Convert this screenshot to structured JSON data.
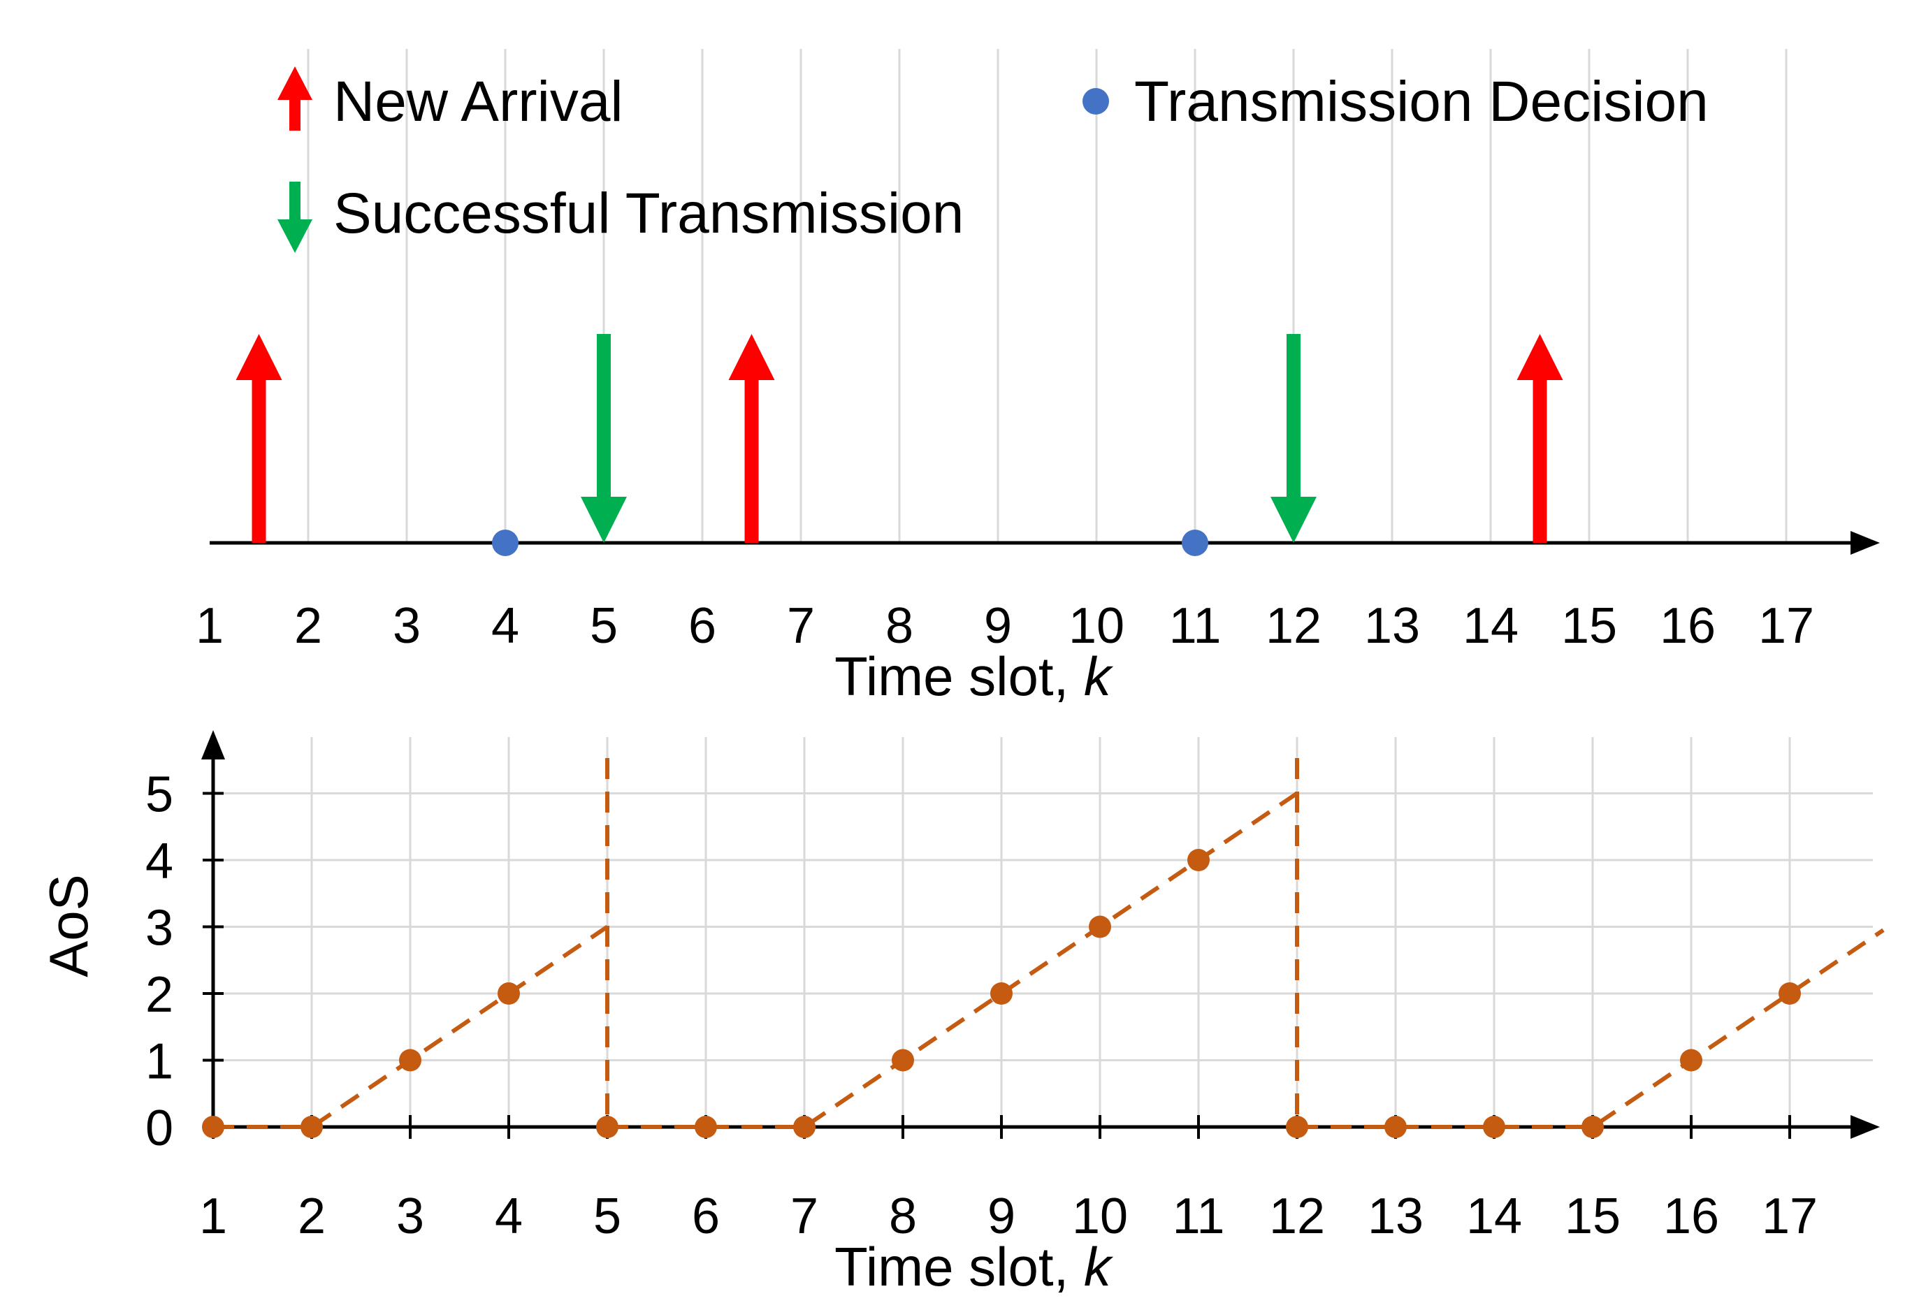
{
  "chart_data": [
    {
      "type": "event-timeline",
      "xlabel": "Time slot, ",
      "xlabel_var": "k",
      "x_ticks": [
        1,
        2,
        3,
        4,
        5,
        6,
        7,
        8,
        9,
        10,
        11,
        12,
        13,
        14,
        15,
        16,
        17
      ],
      "grid": "vertical",
      "legend_placement": "top",
      "legend": [
        {
          "key": "arrival",
          "label": "New Arrival",
          "color": "#ff0000",
          "icon": "up-arrow-icon"
        },
        {
          "key": "decision",
          "label": "Transmission Decision",
          "color": "#4472c4",
          "icon": "dot-icon"
        },
        {
          "key": "success",
          "label": "Successful Transmission",
          "color": "#00b050",
          "icon": "down-arrow-icon"
        }
      ],
      "events": {
        "arrival": [
          1.5,
          6.5,
          14.5
        ],
        "decision": [
          4,
          11
        ],
        "success": [
          5,
          12
        ]
      }
    },
    {
      "type": "line",
      "xlabel": "Time slot, ",
      "xlabel_var": "k",
      "ylabel": "AoS",
      "x_ticks": [
        1,
        2,
        3,
        4,
        5,
        6,
        7,
        8,
        9,
        10,
        11,
        12,
        13,
        14,
        15,
        16,
        17
      ],
      "y_ticks": [
        0,
        1,
        2,
        3,
        4,
        5
      ],
      "ylim": [
        0,
        5.5
      ],
      "grid": true,
      "line_style": "dashed",
      "series": [
        {
          "color": "#c55a11",
          "points": [
            [
              1,
              0
            ],
            [
              2,
              0
            ],
            [
              3,
              1
            ],
            [
              4,
              2
            ],
            [
              5,
              0
            ],
            [
              6,
              0
            ],
            [
              7,
              0
            ],
            [
              8,
              1
            ],
            [
              9,
              2
            ],
            [
              10,
              3
            ],
            [
              11,
              4
            ],
            [
              12,
              0
            ],
            [
              13,
              0
            ],
            [
              14,
              0
            ],
            [
              15,
              0
            ],
            [
              16,
              1
            ],
            [
              17,
              2
            ]
          ],
          "segments": [
            [
              [
                1,
                0
              ],
              [
                2,
                0
              ],
              [
                5,
                3
              ]
            ],
            [
              [
                5,
                0
              ],
              [
                7,
                0
              ],
              [
                12,
                5
              ]
            ],
            [
              [
                12,
                0
              ],
              [
                15,
                0
              ],
              [
                17.95,
                2.95
              ]
            ]
          ],
          "resets": [
            5,
            12
          ]
        }
      ]
    }
  ]
}
